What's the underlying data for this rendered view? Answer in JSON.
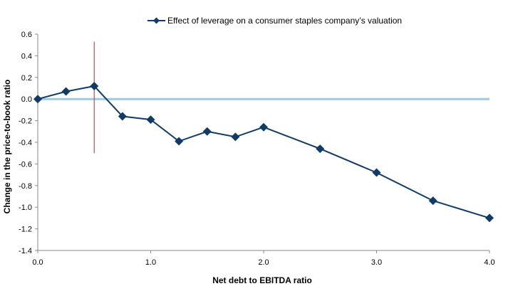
{
  "chart_data": {
    "type": "line",
    "title": "",
    "xlabel": "Net debt to EBITDA  ratio",
    "ylabel": "Change in the price-to-book ratio",
    "xlim": [
      0,
      4
    ],
    "ylim": [
      -1.4,
      0.6
    ],
    "x_ticks": [
      "0.0",
      "1.0",
      "2.0",
      "3.0",
      "4.0"
    ],
    "x_tick_values": [
      0,
      1,
      2,
      3,
      4
    ],
    "y_ticks": [
      "0.6",
      "0.4",
      "0.2",
      "0.0",
      "-0.2",
      "-0.4",
      "-0.6",
      "-0.8",
      "-1.0",
      "-1.2",
      "-1.4"
    ],
    "y_tick_values": [
      0.6,
      0.4,
      0.2,
      0,
      -0.2,
      -0.4,
      -0.6,
      -0.8,
      -1.0,
      -1.2,
      -1.4
    ],
    "grid": false,
    "legend_position": "top",
    "series": [
      {
        "name": "Effect of leverage on a consumer staples company’s valuation",
        "color": "#0f3b66",
        "marker": "diamond",
        "x": [
          0,
          0.25,
          0.5,
          0.75,
          1.0,
          1.25,
          1.5,
          1.75,
          2.0,
          2.5,
          3.0,
          3.5,
          4.0
        ],
        "y": [
          0.0,
          0.07,
          0.12,
          -0.16,
          -0.19,
          -0.39,
          -0.3,
          -0.35,
          -0.26,
          -0.46,
          -0.68,
          -0.94,
          -1.1
        ]
      }
    ],
    "reference_lines": [
      {
        "type": "horizontal",
        "y": 0,
        "color": "#9ecae1"
      },
      {
        "type": "vertical",
        "x": 0.5,
        "y_range": [
          -0.5,
          0.53
        ],
        "color": "#c0504d"
      }
    ]
  }
}
